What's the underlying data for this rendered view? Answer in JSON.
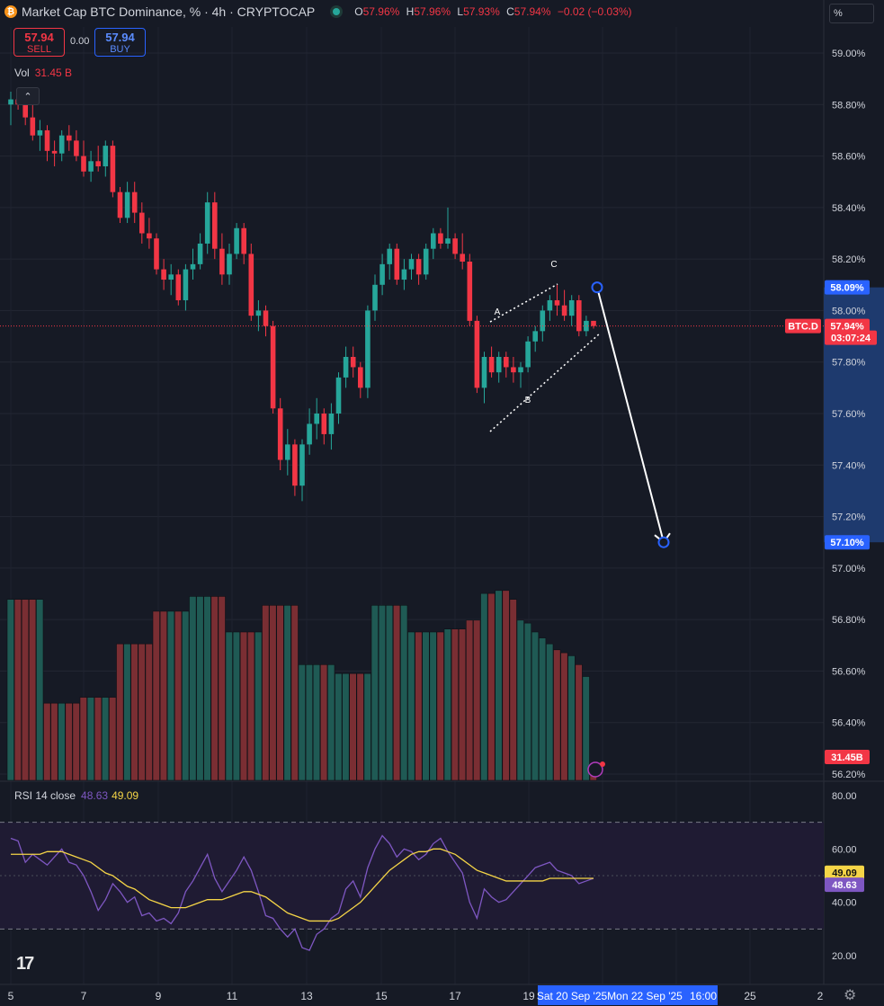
{
  "header": {
    "symbol_icon": "bitcoin-icon",
    "symbol_icon_glyph": "₿",
    "title": "Market Cap BTC Dominance, % · 4h · CRYPTOCAP",
    "open_label": "O",
    "open": "57.96%",
    "high_label": "H",
    "high": "57.96%",
    "low_label": "L",
    "low": "57.93%",
    "close_label": "C",
    "close": "57.94%",
    "change": "−0.02 (−0.03%)"
  },
  "trade": {
    "sell_price": "57.94",
    "sell_label": "SELL",
    "spread": "0.00",
    "buy_price": "57.94",
    "buy_label": "BUY"
  },
  "volume_legend": {
    "label": "Vol",
    "value": "31.45 B"
  },
  "collapse_glyph": "⌃",
  "scale_mode": "%",
  "rsi_legend": {
    "label": "RSI 14 close",
    "rsi": "48.63",
    "ma": "49.09"
  },
  "tv_logo": "17",
  "settings_glyph": "⚙",
  "colors": {
    "background": "#161a25",
    "up": "#26a69a",
    "down": "#f23645",
    "volume_up": "#1f5a54",
    "volume_down": "#7a2e33",
    "rsi": "#7e57c2",
    "rsi_ma": "#f5d547",
    "accent": "#2962ff"
  },
  "chart_data": [
    {
      "type": "candlestick",
      "price_axis": {
        "ticks": [
          "59.00%",
          "58.80%",
          "58.60%",
          "58.40%",
          "58.20%",
          "58.00%",
          "57.80%",
          "57.60%",
          "57.40%",
          "57.20%",
          "57.00%",
          "56.80%",
          "56.60%",
          "56.40%",
          "56.20%"
        ],
        "labels": [
          {
            "text": "58.09%",
            "value": 58.09,
            "color": "#2962ff"
          },
          {
            "text": "BTC.D",
            "value": 57.94,
            "color": "#f23645"
          },
          {
            "text": "57.94%",
            "value": 57.94,
            "color": "#f23645"
          },
          {
            "text": "03:07:24",
            "value": 57.94,
            "color": "#f23645"
          },
          {
            "text": "57.10%",
            "value": 57.1,
            "color": "#2962ff"
          }
        ],
        "current_price": 57.94
      },
      "time_axis": {
        "labels": [
          "5",
          "7",
          "9",
          "11",
          "13",
          "15",
          "17",
          "19",
          "Sat 20 Sep '25",
          "Mon 22 Sep '25",
          "16:00",
          "25",
          "2"
        ],
        "highlighted_range": [
          "Sat 20 Sep '25",
          "Mon 22 Sep '25",
          "16:00"
        ]
      },
      "candles": [
        [
          58.8,
          58.85,
          58.72,
          58.82
        ],
        [
          58.82,
          58.86,
          58.78,
          58.8
        ],
        [
          58.8,
          58.84,
          58.72,
          58.75
        ],
        [
          58.75,
          58.82,
          58.66,
          58.68
        ],
        [
          58.68,
          58.74,
          58.62,
          58.7
        ],
        [
          58.7,
          58.72,
          58.58,
          58.62
        ],
        [
          58.62,
          58.66,
          58.56,
          58.61
        ],
        [
          58.61,
          58.7,
          58.58,
          58.68
        ],
        [
          58.68,
          58.72,
          58.62,
          58.66
        ],
        [
          58.66,
          58.7,
          58.58,
          58.6
        ],
        [
          58.6,
          58.66,
          58.52,
          58.54
        ],
        [
          58.54,
          58.62,
          58.5,
          58.58
        ],
        [
          58.58,
          58.64,
          58.54,
          58.56
        ],
        [
          58.56,
          58.66,
          58.52,
          58.64
        ],
        [
          58.64,
          58.66,
          58.44,
          58.46
        ],
        [
          58.46,
          58.48,
          58.34,
          58.36
        ],
        [
          58.36,
          58.5,
          58.34,
          58.46
        ],
        [
          58.46,
          58.5,
          58.34,
          58.38
        ],
        [
          58.38,
          58.42,
          58.26,
          58.3
        ],
        [
          58.3,
          58.36,
          58.24,
          58.28
        ],
        [
          58.28,
          58.3,
          58.14,
          58.16
        ],
        [
          58.16,
          58.2,
          58.08,
          58.12
        ],
        [
          58.12,
          58.18,
          58.06,
          58.14
        ],
        [
          58.14,
          58.16,
          58.02,
          58.04
        ],
        [
          58.04,
          58.18,
          58.0,
          58.16
        ],
        [
          58.16,
          58.24,
          58.12,
          58.18
        ],
        [
          58.18,
          58.3,
          58.16,
          58.26
        ],
        [
          58.26,
          58.46,
          58.22,
          58.42
        ],
        [
          58.42,
          58.46,
          58.2,
          58.24
        ],
        [
          58.24,
          58.3,
          58.1,
          58.14
        ],
        [
          58.14,
          58.26,
          58.1,
          58.22
        ],
        [
          58.22,
          58.34,
          58.2,
          58.32
        ],
        [
          58.32,
          58.34,
          58.18,
          58.22
        ],
        [
          58.22,
          58.26,
          57.96,
          57.98
        ],
        [
          57.98,
          58.04,
          57.92,
          58.0
        ],
        [
          58.0,
          58.02,
          57.9,
          57.94
        ],
        [
          57.94,
          57.96,
          57.6,
          57.62
        ],
        [
          57.62,
          57.66,
          57.38,
          57.42
        ],
        [
          57.42,
          57.54,
          57.36,
          57.48
        ],
        [
          57.48,
          57.5,
          57.28,
          57.32
        ],
        [
          57.32,
          57.5,
          57.26,
          57.48
        ],
        [
          57.48,
          57.62,
          57.44,
          57.56
        ],
        [
          57.56,
          57.66,
          57.5,
          57.6
        ],
        [
          57.6,
          57.62,
          57.48,
          57.52
        ],
        [
          57.52,
          57.64,
          57.46,
          57.6
        ],
        [
          57.6,
          57.76,
          57.56,
          57.74
        ],
        [
          57.74,
          57.86,
          57.7,
          57.82
        ],
        [
          57.82,
          57.86,
          57.74,
          57.78
        ],
        [
          57.78,
          57.8,
          57.66,
          57.7
        ],
        [
          57.7,
          58.02,
          57.66,
          58.0
        ],
        [
          58.0,
          58.14,
          57.96,
          58.1
        ],
        [
          58.1,
          58.22,
          58.06,
          58.18
        ],
        [
          58.18,
          58.26,
          58.12,
          58.24
        ],
        [
          58.24,
          58.26,
          58.1,
          58.12
        ],
        [
          58.12,
          58.2,
          58.08,
          58.16
        ],
        [
          58.16,
          58.22,
          58.12,
          58.2
        ],
        [
          58.2,
          58.22,
          58.1,
          58.14
        ],
        [
          58.14,
          58.26,
          58.12,
          58.24
        ],
        [
          58.24,
          58.32,
          58.2,
          58.3
        ],
        [
          58.3,
          58.32,
          58.24,
          58.26
        ],
        [
          58.26,
          58.4,
          58.24,
          58.28
        ],
        [
          58.28,
          58.3,
          58.2,
          58.22
        ],
        [
          58.22,
          58.3,
          58.16,
          58.19
        ],
        [
          58.19,
          58.22,
          57.94,
          57.96
        ],
        [
          57.96,
          57.98,
          57.68,
          57.7
        ],
        [
          57.7,
          57.84,
          57.64,
          57.82
        ],
        [
          57.82,
          57.86,
          57.74,
          57.76
        ],
        [
          57.76,
          57.84,
          57.72,
          57.82
        ],
        [
          57.82,
          57.84,
          57.74,
          57.78
        ],
        [
          57.78,
          57.82,
          57.72,
          57.76
        ],
        [
          57.76,
          57.8,
          57.7,
          57.78
        ],
        [
          57.78,
          57.9,
          57.76,
          57.88
        ],
        [
          57.88,
          57.94,
          57.84,
          57.92
        ],
        [
          57.92,
          58.02,
          57.88,
          58.0
        ],
        [
          58.0,
          58.06,
          57.96,
          58.04
        ],
        [
          58.04,
          58.1,
          57.98,
          58.02
        ],
        [
          58.02,
          58.08,
          57.96,
          57.98
        ],
        [
          57.98,
          58.06,
          57.94,
          58.04
        ],
        [
          58.04,
          58.06,
          57.9,
          57.92
        ],
        [
          57.92,
          57.98,
          57.9,
          57.96
        ],
        [
          57.96,
          57.96,
          57.93,
          57.94
        ]
      ],
      "annotations": [
        {
          "label": "A"
        },
        {
          "label": "B"
        },
        {
          "label": "C"
        }
      ],
      "projection": {
        "from": 58.09,
        "to": 57.1
      }
    },
    {
      "type": "bar",
      "title": "Vol",
      "last_value_label": "31.45B",
      "values": [
        6.1,
        6.1,
        6.1,
        6.1,
        6.1,
        2.6,
        2.6,
        2.6,
        2.6,
        2.6,
        2.8,
        2.8,
        2.8,
        2.8,
        2.8,
        4.6,
        4.6,
        4.6,
        4.6,
        4.6,
        5.7,
        5.7,
        5.7,
        5.7,
        5.7,
        6.2,
        6.2,
        6.2,
        6.2,
        6.2,
        5.0,
        5.0,
        5.0,
        5.0,
        5.0,
        5.9,
        5.9,
        5.9,
        5.9,
        5.9,
        3.9,
        3.9,
        3.9,
        3.9,
        3.9,
        3.6,
        3.6,
        3.6,
        3.6,
        3.6,
        5.9,
        5.9,
        5.9,
        5.9,
        5.9,
        5.0,
        5.0,
        5.0,
        5.0,
        5.0,
        5.1,
        5.1,
        5.1,
        5.4,
        5.4,
        6.3,
        6.3,
        6.4,
        6.4,
        6.1,
        5.4,
        5.3,
        5.0,
        4.8,
        4.6,
        4.4,
        4.3,
        4.2,
        3.9,
        3.5,
        0.2
      ]
    },
    {
      "type": "line",
      "title": "RSI 14 close",
      "yticks": [
        "80.00",
        "60.00",
        "40.00",
        "20.00"
      ],
      "bands": [
        70,
        30
      ],
      "last_labels": [
        {
          "text": "49.09",
          "value": 49.09,
          "color": "#f5d547"
        },
        {
          "text": "48.63",
          "value": 48.63,
          "color": "#7e57c2"
        }
      ],
      "series": [
        {
          "color": "#7e57c2",
          "values": [
            64,
            63,
            55,
            58,
            56,
            54,
            57,
            60,
            55,
            54,
            50,
            44,
            37,
            41,
            47,
            44,
            40,
            42,
            35,
            36,
            33,
            34,
            32,
            36,
            44,
            48,
            53,
            58,
            49,
            44,
            48,
            52,
            57,
            52,
            44,
            35,
            34,
            30,
            27,
            30,
            23,
            22,
            28,
            30,
            34,
            36,
            45,
            48,
            42,
            53,
            60,
            65,
            62,
            57,
            60,
            59,
            56,
            58,
            62,
            64,
            59,
            55,
            51,
            40,
            34,
            45,
            42,
            40,
            41,
            44,
            47,
            50,
            53,
            54,
            55,
            52,
            51,
            50,
            47,
            48,
            49
          ]
        },
        {
          "color": "#f5d547",
          "values": [
            58,
            58,
            58,
            58,
            58,
            59,
            59,
            59,
            58,
            57,
            56,
            55,
            53,
            51,
            50,
            48,
            46,
            45,
            43,
            41,
            40,
            39,
            38,
            38,
            38,
            39,
            40,
            41,
            41,
            41,
            42,
            43,
            44,
            44,
            43,
            42,
            40,
            38,
            36,
            35,
            34,
            33,
            33,
            33,
            33,
            34,
            36,
            38,
            40,
            43,
            46,
            49,
            52,
            54,
            56,
            58,
            59,
            59,
            60,
            60,
            59,
            58,
            56,
            54,
            52,
            51,
            50,
            49,
            48,
            48,
            48,
            48,
            48,
            48,
            49,
            49,
            49,
            49,
            49,
            49,
            49
          ]
        }
      ]
    }
  ]
}
